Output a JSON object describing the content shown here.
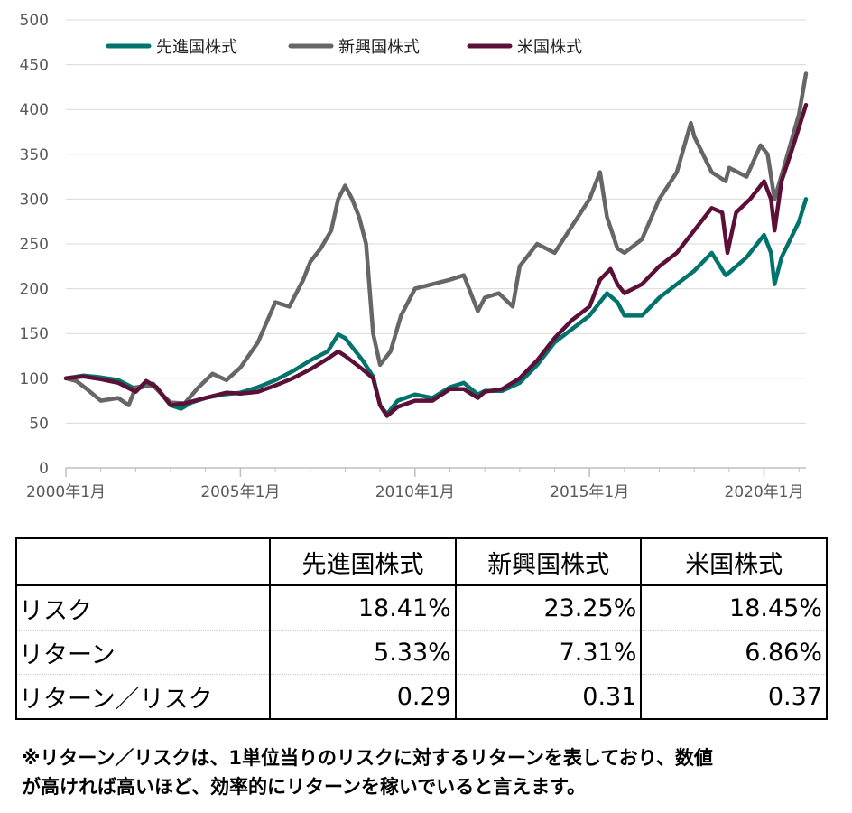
{
  "chart_data": {
    "type": "line",
    "ylim": [
      0,
      500
    ],
    "yticks": [
      "0",
      "50",
      "100",
      "150",
      "200",
      "250",
      "300",
      "350",
      "400",
      "450",
      "500"
    ],
    "xlim": [
      2000.0,
      2021.2
    ],
    "xticks": [
      {
        "x": 2000.0,
        "label": "2000年1月"
      },
      {
        "x": 2005.0,
        "label": "2005年1月"
      },
      {
        "x": 2010.0,
        "label": "2010年1月"
      },
      {
        "x": 2015.0,
        "label": "2015年1月"
      },
      {
        "x": 2020.0,
        "label": "2020年1月"
      }
    ],
    "grid": "horizontal",
    "legend_position": "top-left",
    "series": [
      {
        "name": "先進国株式",
        "color": "#00736d",
        "points": [
          [
            2000.0,
            100
          ],
          [
            2000.5,
            103
          ],
          [
            2001.0,
            101
          ],
          [
            2001.5,
            98
          ],
          [
            2002.0,
            88
          ],
          [
            2002.5,
            94
          ],
          [
            2003.0,
            70
          ],
          [
            2003.3,
            66
          ],
          [
            2003.6,
            73
          ],
          [
            2004.0,
            78
          ],
          [
            2004.5,
            82
          ],
          [
            2005.0,
            84
          ],
          [
            2005.5,
            90
          ],
          [
            2006.0,
            98
          ],
          [
            2006.5,
            108
          ],
          [
            2007.0,
            120
          ],
          [
            2007.5,
            130
          ],
          [
            2007.8,
            149
          ],
          [
            2008.0,
            145
          ],
          [
            2008.5,
            120
          ],
          [
            2008.8,
            102
          ],
          [
            2009.0,
            70
          ],
          [
            2009.2,
            60
          ],
          [
            2009.5,
            75
          ],
          [
            2010.0,
            82
          ],
          [
            2010.5,
            78
          ],
          [
            2011.0,
            90
          ],
          [
            2011.4,
            95
          ],
          [
            2011.8,
            82
          ],
          [
            2012.0,
            86
          ],
          [
            2012.5,
            86
          ],
          [
            2013.0,
            95
          ],
          [
            2013.5,
            115
          ],
          [
            2014.0,
            140
          ],
          [
            2014.5,
            155
          ],
          [
            2015.0,
            170
          ],
          [
            2015.5,
            195
          ],
          [
            2015.8,
            185
          ],
          [
            2016.0,
            170
          ],
          [
            2016.5,
            170
          ],
          [
            2017.0,
            190
          ],
          [
            2017.5,
            205
          ],
          [
            2018.0,
            220
          ],
          [
            2018.5,
            240
          ],
          [
            2018.9,
            215
          ],
          [
            2019.0,
            218
          ],
          [
            2019.5,
            235
          ],
          [
            2020.0,
            260
          ],
          [
            2020.2,
            240
          ],
          [
            2020.3,
            205
          ],
          [
            2020.5,
            235
          ],
          [
            2021.0,
            275
          ],
          [
            2021.2,
            300
          ]
        ]
      },
      {
        "name": "新興国株式",
        "color": "#666666",
        "points": [
          [
            2000.0,
            100
          ],
          [
            2000.3,
            97
          ],
          [
            2000.6,
            88
          ],
          [
            2001.0,
            75
          ],
          [
            2001.5,
            78
          ],
          [
            2001.8,
            70
          ],
          [
            2002.0,
            90
          ],
          [
            2002.5,
            92
          ],
          [
            2002.8,
            80
          ],
          [
            2003.0,
            73
          ],
          [
            2003.4,
            72
          ],
          [
            2003.8,
            90
          ],
          [
            2004.2,
            105
          ],
          [
            2004.6,
            98
          ],
          [
            2005.0,
            112
          ],
          [
            2005.5,
            140
          ],
          [
            2006.0,
            185
          ],
          [
            2006.4,
            180
          ],
          [
            2006.8,
            210
          ],
          [
            2007.0,
            230
          ],
          [
            2007.3,
            245
          ],
          [
            2007.6,
            265
          ],
          [
            2007.8,
            300
          ],
          [
            2008.0,
            315
          ],
          [
            2008.2,
            300
          ],
          [
            2008.4,
            280
          ],
          [
            2008.6,
            250
          ],
          [
            2008.8,
            150
          ],
          [
            2009.0,
            115
          ],
          [
            2009.3,
            130
          ],
          [
            2009.6,
            170
          ],
          [
            2010.0,
            200
          ],
          [
            2010.5,
            205
          ],
          [
            2011.0,
            210
          ],
          [
            2011.4,
            215
          ],
          [
            2011.8,
            175
          ],
          [
            2012.0,
            190
          ],
          [
            2012.4,
            195
          ],
          [
            2012.8,
            180
          ],
          [
            2013.0,
            225
          ],
          [
            2013.5,
            250
          ],
          [
            2014.0,
            240
          ],
          [
            2014.5,
            270
          ],
          [
            2015.0,
            300
          ],
          [
            2015.3,
            330
          ],
          [
            2015.5,
            280
          ],
          [
            2015.8,
            245
          ],
          [
            2016.0,
            240
          ],
          [
            2016.5,
            255
          ],
          [
            2017.0,
            300
          ],
          [
            2017.5,
            330
          ],
          [
            2017.9,
            385
          ],
          [
            2018.0,
            370
          ],
          [
            2018.5,
            330
          ],
          [
            2018.9,
            320
          ],
          [
            2019.0,
            335
          ],
          [
            2019.5,
            325
          ],
          [
            2019.9,
            360
          ],
          [
            2020.1,
            350
          ],
          [
            2020.3,
            300
          ],
          [
            2020.6,
            340
          ],
          [
            2021.0,
            395
          ],
          [
            2021.2,
            440
          ]
        ]
      },
      {
        "name": "米国株式",
        "color": "#5c1038",
        "points": [
          [
            2000.0,
            100
          ],
          [
            2000.5,
            102
          ],
          [
            2001.0,
            99
          ],
          [
            2001.5,
            95
          ],
          [
            2002.0,
            85
          ],
          [
            2002.3,
            97
          ],
          [
            2002.6,
            90
          ],
          [
            2003.0,
            70
          ],
          [
            2003.4,
            72
          ],
          [
            2003.8,
            76
          ],
          [
            2004.2,
            80
          ],
          [
            2004.6,
            84
          ],
          [
            2005.0,
            83
          ],
          [
            2005.5,
            85
          ],
          [
            2006.0,
            92
          ],
          [
            2006.5,
            100
          ],
          [
            2007.0,
            110
          ],
          [
            2007.5,
            122
          ],
          [
            2007.8,
            130
          ],
          [
            2008.0,
            125
          ],
          [
            2008.5,
            110
          ],
          [
            2008.8,
            100
          ],
          [
            2009.0,
            70
          ],
          [
            2009.2,
            58
          ],
          [
            2009.5,
            68
          ],
          [
            2010.0,
            75
          ],
          [
            2010.5,
            75
          ],
          [
            2011.0,
            88
          ],
          [
            2011.4,
            88
          ],
          [
            2011.8,
            78
          ],
          [
            2012.0,
            85
          ],
          [
            2012.5,
            88
          ],
          [
            2013.0,
            100
          ],
          [
            2013.5,
            120
          ],
          [
            2014.0,
            145
          ],
          [
            2014.5,
            165
          ],
          [
            2015.0,
            180
          ],
          [
            2015.3,
            210
          ],
          [
            2015.6,
            222
          ],
          [
            2015.8,
            205
          ],
          [
            2016.0,
            195
          ],
          [
            2016.5,
            205
          ],
          [
            2017.0,
            225
          ],
          [
            2017.5,
            240
          ],
          [
            2018.0,
            265
          ],
          [
            2018.5,
            290
          ],
          [
            2018.8,
            285
          ],
          [
            2018.95,
            240
          ],
          [
            2019.2,
            285
          ],
          [
            2019.6,
            300
          ],
          [
            2020.0,
            320
          ],
          [
            2020.2,
            300
          ],
          [
            2020.3,
            265
          ],
          [
            2020.5,
            320
          ],
          [
            2020.8,
            355
          ],
          [
            2021.0,
            380
          ],
          [
            2021.2,
            405
          ]
        ]
      }
    ]
  },
  "table": {
    "headers": [
      "",
      "先進国株式",
      "新興国株式",
      "米国株式"
    ],
    "rows": [
      {
        "label": "リスク",
        "values": [
          "18.41%",
          "23.25%",
          "18.45%"
        ]
      },
      {
        "label": "リターン",
        "values": [
          "5.33%",
          "7.31%",
          "6.86%"
        ]
      },
      {
        "label": "リターン／リスク",
        "values": [
          "0.29",
          "0.31",
          "0.37"
        ]
      }
    ]
  },
  "note": {
    "line1": "※リターン／リスクは、1単位当りのリスクに対するリターンを表しており、数値",
    "line2": "が高ければ高いほど、効率的にリターンを稼いでいると言えます。"
  }
}
